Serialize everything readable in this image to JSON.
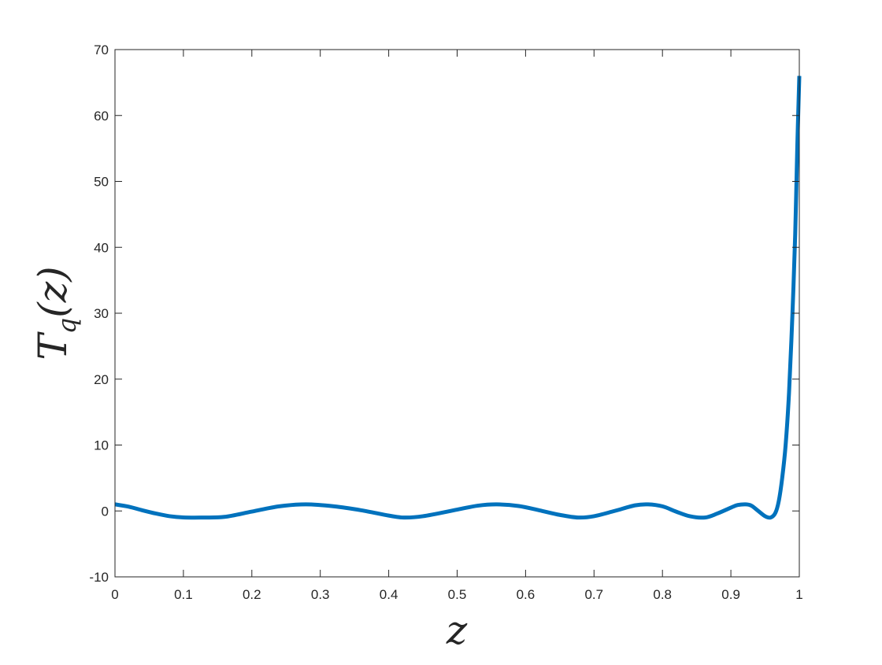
{
  "chart_data": {
    "type": "line",
    "title": "",
    "xlabel": "z",
    "ylabel": {
      "main": "T",
      "subscript": "q",
      "argument": "(z)"
    },
    "xlim": [
      0,
      1
    ],
    "ylim": [
      -10,
      70
    ],
    "xticks": [
      0,
      0.1,
      0.2,
      0.3,
      0.4,
      0.5,
      0.6,
      0.7,
      0.8,
      0.9,
      1
    ],
    "xtick_labels": [
      "0",
      "0.1",
      "0.2",
      "0.3",
      "0.4",
      "0.5",
      "0.6",
      "0.7",
      "0.8",
      "0.9",
      "1"
    ],
    "yticks": [
      -10,
      0,
      10,
      20,
      30,
      40,
      50,
      60,
      70
    ],
    "ytick_labels": [
      "-10",
      "0",
      "10",
      "20",
      "30",
      "40",
      "50",
      "60",
      "70"
    ],
    "grid": false,
    "box": true,
    "series": [
      {
        "color": "#0072BD",
        "x": [
          0,
          0.02,
          0.04,
          0.06,
          0.08,
          0.1,
          0.127,
          0.16,
          0.2,
          0.24,
          0.279,
          0.32,
          0.36,
          0.4,
          0.422,
          0.45,
          0.5,
          0.53,
          0.558,
          0.59,
          0.62,
          0.65,
          0.677,
          0.7,
          0.73,
          0.76,
          0.779,
          0.8,
          0.82,
          0.84,
          0.862,
          0.88,
          0.9,
          0.91,
          0.922,
          0.93,
          0.94,
          0.95,
          0.958,
          0.965,
          0.97,
          0.975,
          0.98,
          0.985,
          0.99,
          0.994,
          0.997,
          1.0
        ],
        "y": [
          1,
          0.65,
          0.1,
          -0.4,
          -0.8,
          -0.98,
          -1,
          -0.9,
          -0.1,
          0.7,
          1,
          0.7,
          0.1,
          -0.7,
          -1,
          -0.8,
          0.2,
          0.8,
          1,
          0.75,
          0.1,
          -0.6,
          -1,
          -0.8,
          0.0,
          0.85,
          1,
          0.7,
          -0.1,
          -0.8,
          -1,
          -0.4,
          0.5,
          0.9,
          1,
          0.8,
          0.0,
          -0.8,
          -1,
          -0.3,
          1.5,
          5,
          10,
          18,
          30,
          42,
          55,
          66
        ]
      }
    ]
  }
}
